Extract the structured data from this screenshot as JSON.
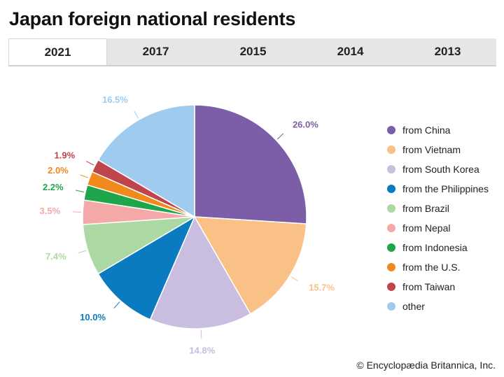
{
  "title": "Japan foreign national residents",
  "tabs": [
    {
      "label": "2021",
      "active": true
    },
    {
      "label": "2017",
      "active": false
    },
    {
      "label": "2015",
      "active": false
    },
    {
      "label": "2014",
      "active": false
    },
    {
      "label": "2013",
      "active": false
    }
  ],
  "credit": "© Encyclopædia Britannica, Inc.",
  "chart_data": {
    "type": "pie",
    "title": "Japan foreign national residents",
    "legend_position": "right",
    "slices": [
      {
        "label": "from China",
        "value": 26.0,
        "display": "26.0%",
        "color": "#7b5ea7"
      },
      {
        "label": "from Vietnam",
        "value": 15.7,
        "display": "15.7%",
        "color": "#f9c185"
      },
      {
        "label": "from South Korea",
        "value": 14.8,
        "display": "14.8%",
        "color": "#c9bee0"
      },
      {
        "label": "from the Philippines",
        "value": 10.0,
        "display": "10.0%",
        "color": "#0a7bc1"
      },
      {
        "label": "from Brazil",
        "value": 7.4,
        "display": "7.4%",
        "color": "#acd9a3"
      },
      {
        "label": "from Nepal",
        "value": 3.5,
        "display": "3.5%",
        "color": "#f4a9a8"
      },
      {
        "label": "from Indonesia",
        "value": 2.2,
        "display": "2.2%",
        "color": "#1fa64a"
      },
      {
        "label": "from the U.S.",
        "value": 2.0,
        "display": "2.0%",
        "color": "#f08a1c"
      },
      {
        "label": "from Taiwan",
        "value": 1.9,
        "display": "1.9%",
        "color": "#c0444c"
      },
      {
        "label": "other",
        "value": 16.5,
        "display": "16.5%",
        "color": "#9fcbee"
      }
    ]
  }
}
